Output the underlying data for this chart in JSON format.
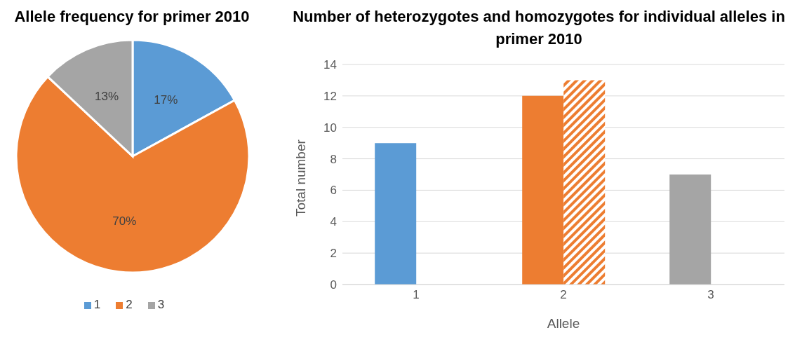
{
  "chart_data": [
    {
      "type": "pie",
      "title": "Allele frequency for primer 2010",
      "categories": [
        "1",
        "2",
        "3"
      ],
      "values": [
        17,
        70,
        13
      ],
      "colors": [
        "#5b9bd5",
        "#ed7d31",
        "#a5a5a5"
      ],
      "value_labels": [
        "17%",
        "70%",
        "13%"
      ],
      "legend": "bottom"
    },
    {
      "type": "bar",
      "title": "Number of heterozygotes and homozygotes for individual alleles in primer 2010",
      "xlabel": "Allele",
      "ylabel": "Total number",
      "categories": [
        "1",
        "2",
        "3"
      ],
      "series": [
        {
          "colors": [
            "#5b9bd5",
            "#ed7d31",
            "#a5a5a5"
          ],
          "values": [
            9,
            12,
            7
          ]
        },
        {
          "colors": [
            "#ed7d31",
            "#ed7d31",
            "#ed7d31"
          ],
          "values": [
            null,
            13,
            null
          ]
        }
      ],
      "ylim": [
        0,
        14
      ],
      "yticks": [
        0,
        2,
        4,
        6,
        8,
        10,
        12,
        14
      ],
      "grid": "y",
      "legend": false
    }
  ]
}
